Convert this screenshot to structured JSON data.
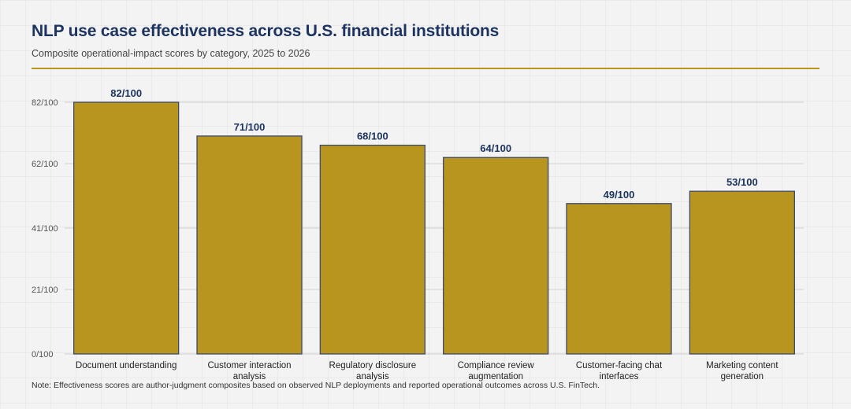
{
  "colors": {
    "bar": "#b8951f",
    "bar_stroke": "#3c4a6b",
    "title": "#1d3461",
    "value_label": "#1d3461",
    "accent_rule": "#b8951f"
  },
  "chart_data": {
    "type": "bar",
    "title": "NLP use case effectiveness across U.S. financial institutions",
    "subtitle": "Composite operational-impact scores by category, 2025 to 2026",
    "categories": [
      [
        "Document understanding"
      ],
      [
        "Customer interaction",
        "analysis"
      ],
      [
        "Regulatory disclosure",
        "analysis"
      ],
      [
        "Compliance review",
        "augmentation"
      ],
      [
        "Customer-facing chat",
        "interfaces"
      ],
      [
        "Marketing content",
        "generation"
      ]
    ],
    "values": [
      82,
      71,
      68,
      64,
      49,
      53
    ],
    "value_labels": [
      "82/100",
      "71/100",
      "68/100",
      "64/100",
      "49/100",
      "53/100"
    ],
    "yticks": [
      0,
      21,
      41,
      62,
      82
    ],
    "ytick_labels": [
      "0/100",
      "21/100",
      "41/100",
      "62/100",
      "82/100"
    ],
    "ylim": [
      0,
      82
    ],
    "grid": "horizontal",
    "xlabel": "",
    "ylabel": ""
  },
  "note": "Note: Effectiveness scores are author-judgment composites based on observed NLP deployments and reported operational outcomes across U.S. FinTech."
}
